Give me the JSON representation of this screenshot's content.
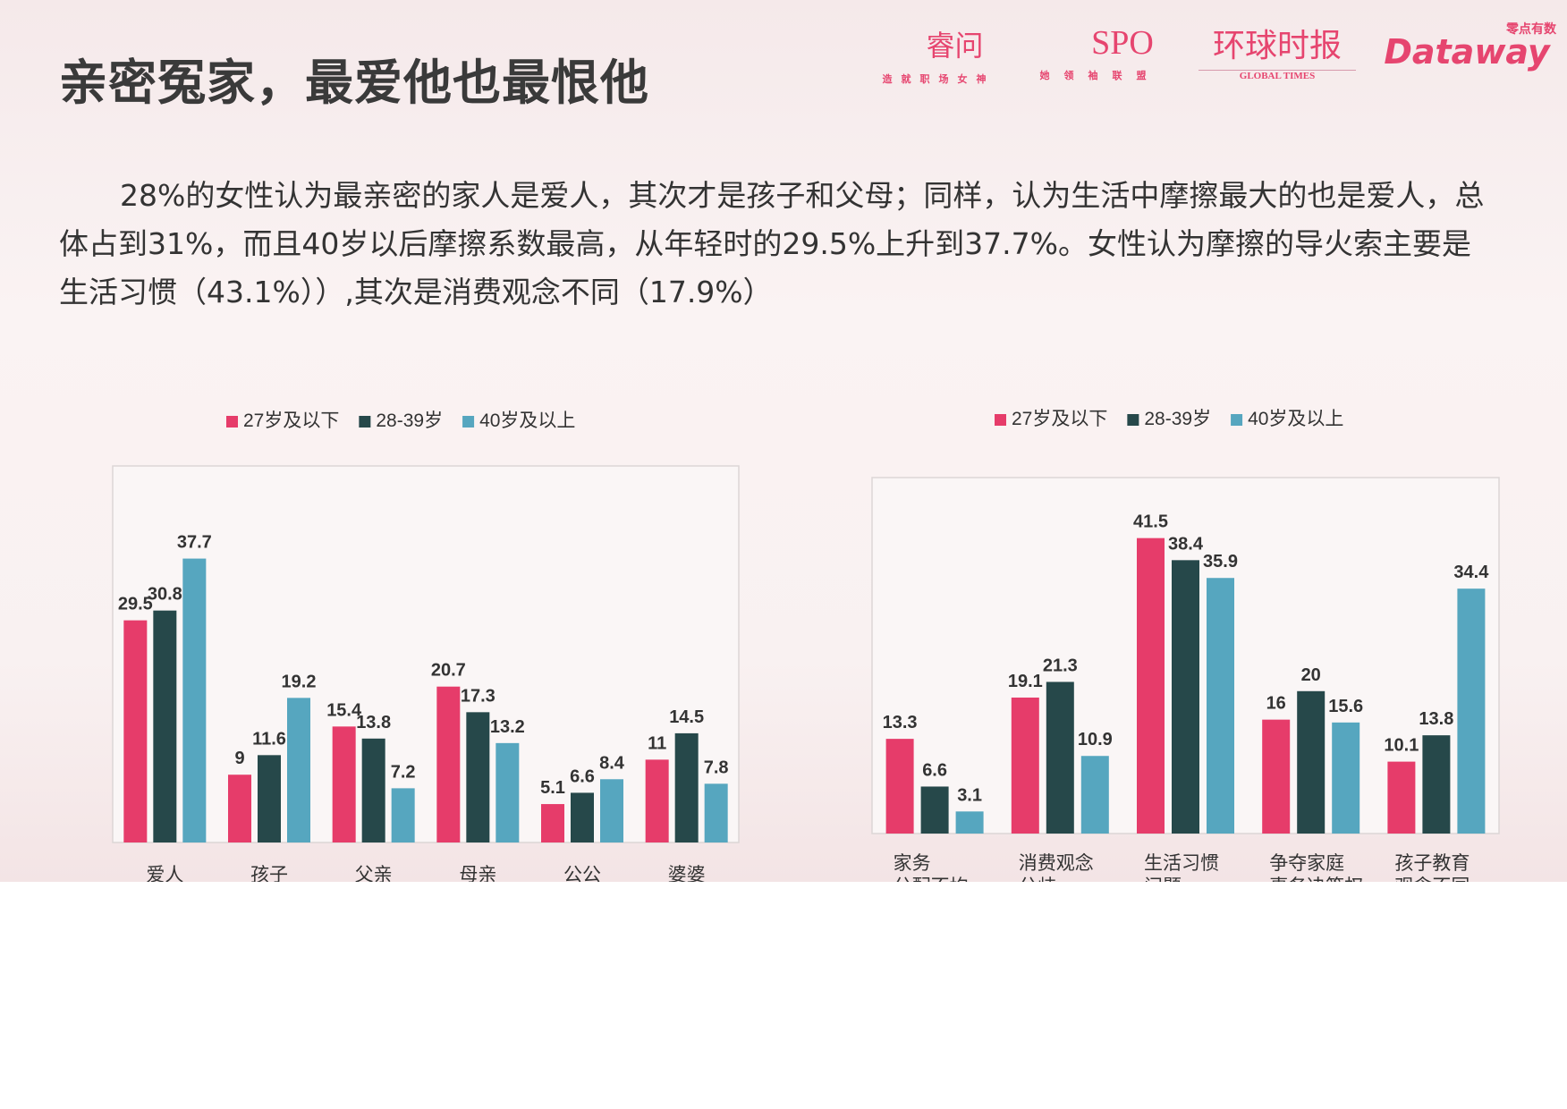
{
  "title": "亲密冤家，最爱他也最恨他",
  "paragraph": "28%的女性认为最亲密的家人是爱人，其次才是孩子和父母；同样，认为生活中摩擦最大的也是爱人，总体占到31%，而且40岁以后摩擦系数最高，从年轻时的29.5%上升到37.7%。女性认为摩擦的导火索主要是生活习惯（43.1%））,其次是消费观念不同（17.9%）",
  "logos": [
    {
      "name": "睿问",
      "tagline": "造就职场女神"
    },
    {
      "name": "SPO",
      "tagline": "她领袖联盟"
    },
    {
      "name": "环球时报",
      "tagline": "GLOBAL TIMES"
    },
    {
      "name": "Dataway",
      "tagline": "零点有数"
    }
  ],
  "colors": {
    "series1": "#e63c6a",
    "series2": "#26484a",
    "series3": "#56a6bf",
    "brand": "#e6456f"
  },
  "chart_data": [
    {
      "type": "bar",
      "categories": [
        "爱人",
        "孩子",
        "父亲",
        "母亲",
        "公公",
        "婆婆"
      ],
      "series": [
        {
          "name": "27岁及以下",
          "values": [
            29.5,
            9,
            15.4,
            20.7,
            5.1,
            11
          ]
        },
        {
          "name": "28-39岁",
          "values": [
            30.8,
            11.6,
            13.8,
            17.3,
            6.6,
            14.5
          ]
        },
        {
          "name": "40岁及以上",
          "values": [
            37.7,
            19.2,
            7.2,
            13.2,
            8.4,
            7.8
          ]
        }
      ],
      "ylim": [
        0,
        50
      ],
      "grid": false,
      "legend": "top",
      "data_labels": true
    },
    {
      "type": "bar",
      "categories": [
        [
          "家务",
          "分配不均"
        ],
        [
          "消费观念",
          "分歧"
        ],
        [
          "生活习惯",
          "问题"
        ],
        [
          "争夺家庭",
          "事务决策权"
        ],
        [
          "孩子教育",
          "观念不同"
        ]
      ],
      "series": [
        {
          "name": "27岁及以下",
          "values": [
            13.3,
            19.1,
            41.5,
            16,
            10.1
          ]
        },
        {
          "name": "28-39岁",
          "values": [
            6.6,
            21.3,
            38.4,
            20,
            13.8
          ]
        },
        {
          "name": "40岁及以上",
          "values": [
            3.1,
            10.9,
            35.9,
            15.6,
            34.4
          ]
        }
      ],
      "ylim": [
        0,
        50
      ],
      "grid": false,
      "legend": "top",
      "data_labels": true
    }
  ]
}
